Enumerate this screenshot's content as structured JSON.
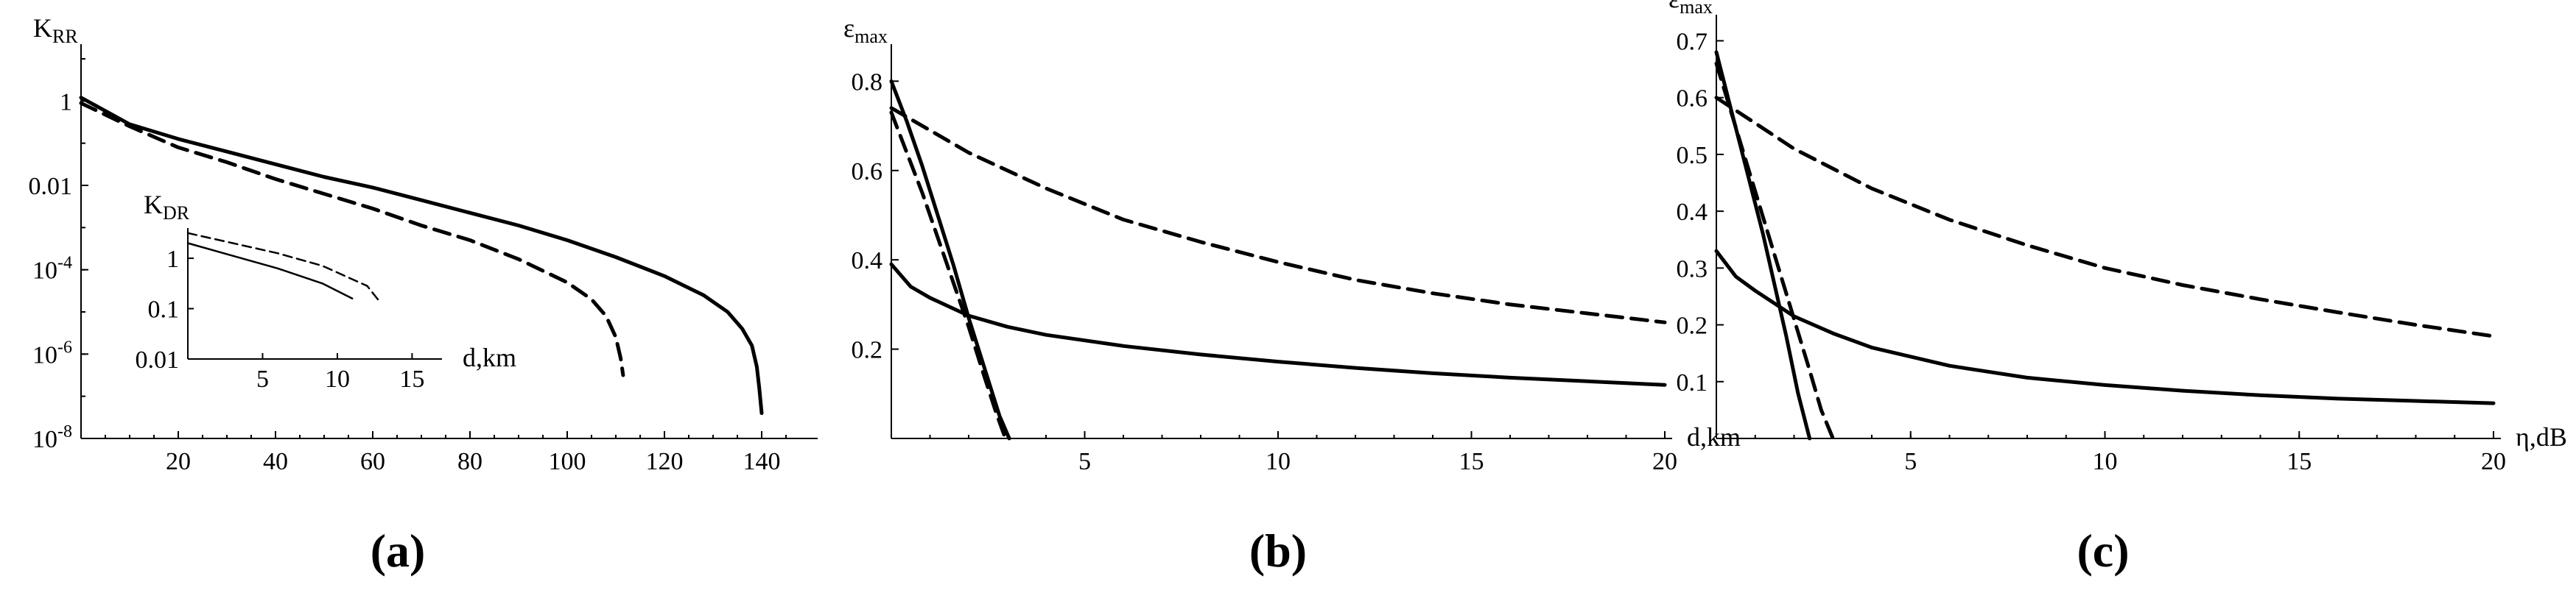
{
  "chart_data": [
    {
      "type": "line",
      "panel_label": "(a)",
      "ylabel": "K",
      "ylabel_sub": "RR",
      "xlabel": "",
      "xlim": [
        0,
        150
      ],
      "ylim_log10": [
        -8,
        1
      ],
      "yscale": "log",
      "x_ticks": [
        20,
        40,
        60,
        80,
        100,
        120,
        140
      ],
      "y_ticks": [
        {
          "label": "1",
          "exp": null,
          "value_log10": 0
        },
        {
          "label": "0.01",
          "exp": null,
          "value_log10": -2
        },
        {
          "label": "10",
          "exp": "-4",
          "value_log10": -4
        },
        {
          "label": "10",
          "exp": "-6",
          "value_log10": -6
        },
        {
          "label": "10",
          "exp": "-8",
          "value_log10": -8
        }
      ],
      "series": [
        {
          "style": "solid",
          "x": [
            0,
            10,
            20,
            30,
            40,
            50,
            60,
            70,
            80,
            90,
            100,
            110,
            120,
            128,
            133,
            136,
            138,
            139,
            139.5,
            140
          ],
          "log10_y": [
            0.08,
            -0.55,
            -0.9,
            -1.2,
            -1.5,
            -1.8,
            -2.05,
            -2.35,
            -2.65,
            -2.95,
            -3.3,
            -3.7,
            -4.15,
            -4.6,
            -5.0,
            -5.4,
            -5.8,
            -6.3,
            -6.8,
            -7.4
          ]
        },
        {
          "style": "dashed",
          "x": [
            0,
            10,
            20,
            30,
            40,
            50,
            60,
            70,
            80,
            90,
            100,
            105,
            108,
            110,
            111,
            111.5
          ],
          "log10_y": [
            -0.05,
            -0.6,
            -1.1,
            -1.45,
            -1.85,
            -2.2,
            -2.55,
            -2.95,
            -3.3,
            -3.75,
            -4.3,
            -4.7,
            -5.1,
            -5.6,
            -6.1,
            -6.5
          ]
        }
      ],
      "inset": {
        "ylabel": "K",
        "ylabel_sub": "DR",
        "xlabel": "d,km",
        "xlim": [
          0,
          17
        ],
        "ylim_log10": [
          -2,
          0.6
        ],
        "x_ticks": [
          5,
          10,
          15
        ],
        "y_ticks": [
          {
            "label": "1",
            "value_log10": 0
          },
          {
            "label": "0.1",
            "value_log10": -1
          },
          {
            "label": "0.01",
            "value_log10": -2
          }
        ],
        "series": [
          {
            "style": "solid",
            "x": [
              0,
              3,
              6,
              9,
              11
            ],
            "log10_y": [
              0.3,
              0.05,
              -0.2,
              -0.5,
              -0.8
            ]
          },
          {
            "style": "dashed",
            "x": [
              0,
              3,
              6,
              9,
              12,
              12.8
            ],
            "log10_y": [
              0.5,
              0.3,
              0.1,
              -0.15,
              -0.55,
              -0.85
            ]
          }
        ]
      }
    },
    {
      "type": "line",
      "panel_label": "(b)",
      "ylabel": "ε",
      "ylabel_sub": "max",
      "xlabel": "d,km",
      "xlim": [
        0,
        20
      ],
      "ylim": [
        0,
        0.85
      ],
      "x_ticks": [
        5,
        10,
        15,
        20
      ],
      "y_ticks": [
        0.2,
        0.4,
        0.6,
        0.8
      ],
      "series": [
        {
          "style": "solid",
          "x": [
            0,
            0.5,
            1,
            2,
            3,
            4,
            6,
            8,
            10,
            12,
            14,
            16,
            18,
            20
          ],
          "y": [
            0.39,
            0.34,
            0.315,
            0.275,
            0.25,
            0.232,
            0.207,
            0.188,
            0.172,
            0.158,
            0.146,
            0.136,
            0.128,
            0.12
          ]
        },
        {
          "style": "solid",
          "x": [
            0,
            0.4,
            0.8,
            1.2,
            1.6,
            2.0,
            2.4,
            2.8,
            3.05
          ],
          "y": [
            0.8,
            0.71,
            0.61,
            0.5,
            0.39,
            0.27,
            0.16,
            0.05,
            0.0
          ]
        },
        {
          "style": "dashed",
          "x": [
            0,
            2,
            4,
            6,
            8,
            10,
            12,
            14,
            16,
            18,
            20
          ],
          "y": [
            0.74,
            0.64,
            0.56,
            0.49,
            0.44,
            0.395,
            0.355,
            0.325,
            0.3,
            0.28,
            0.26
          ]
        },
        {
          "style": "dashed",
          "x": [
            0,
            0.4,
            0.8,
            1.2,
            1.6,
            2.0,
            2.4,
            2.7,
            2.95
          ],
          "y": [
            0.73,
            0.64,
            0.55,
            0.45,
            0.35,
            0.25,
            0.14,
            0.06,
            0.0
          ]
        }
      ]
    },
    {
      "type": "line",
      "panel_label": "(c)",
      "ylabel": "ε",
      "ylabel_sub": "max",
      "xlabel": "η,dB",
      "xlim": [
        0,
        20
      ],
      "ylim": [
        0,
        0.72
      ],
      "x_ticks": [
        5,
        10,
        15,
        20
      ],
      "y_ticks": [
        0.1,
        0.2,
        0.3,
        0.4,
        0.5,
        0.6,
        0.7
      ],
      "series": [
        {
          "style": "solid",
          "x": [
            0,
            0.5,
            1,
            2,
            3,
            4,
            6,
            8,
            10,
            12,
            14,
            16,
            18,
            20
          ],
          "y": [
            0.33,
            0.285,
            0.26,
            0.215,
            0.185,
            0.16,
            0.128,
            0.107,
            0.094,
            0.084,
            0.076,
            0.07,
            0.066,
            0.062
          ]
        },
        {
          "style": "solid",
          "x": [
            0,
            0.3,
            0.6,
            0.9,
            1.2,
            1.5,
            1.8,
            2.1,
            2.4
          ],
          "y": [
            0.68,
            0.6,
            0.52,
            0.44,
            0.36,
            0.27,
            0.18,
            0.08,
            0.0
          ]
        },
        {
          "style": "dashed",
          "x": [
            0,
            2,
            4,
            6,
            8,
            10,
            12,
            14,
            16,
            18,
            20
          ],
          "y": [
            0.6,
            0.51,
            0.44,
            0.385,
            0.34,
            0.3,
            0.27,
            0.245,
            0.222,
            0.2,
            0.18
          ]
        },
        {
          "style": "dashed",
          "x": [
            0,
            0.4,
            0.8,
            1.2,
            1.6,
            2.0,
            2.4,
            2.7,
            3.0
          ],
          "y": [
            0.66,
            0.57,
            0.48,
            0.39,
            0.3,
            0.21,
            0.12,
            0.05,
            0.0
          ]
        }
      ]
    }
  ]
}
